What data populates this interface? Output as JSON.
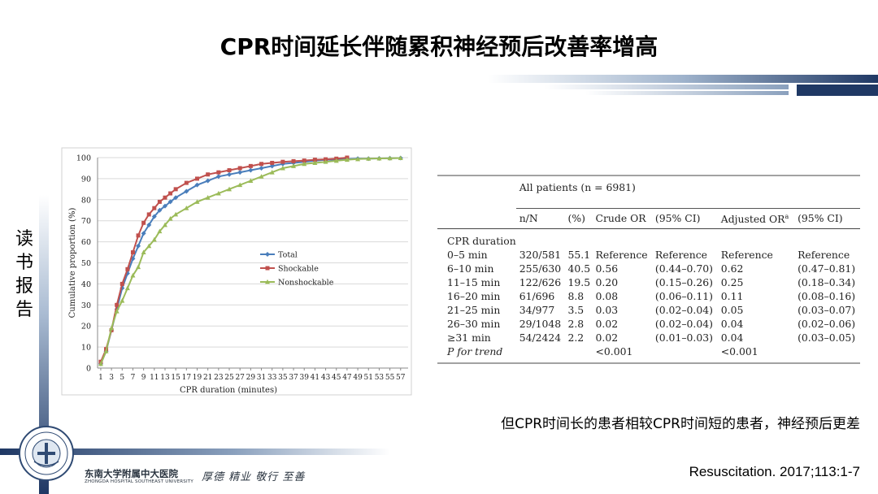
{
  "title": "CPR时间延长伴随累积神经预后改善率增高",
  "side_label": [
    "读",
    "书",
    "报",
    "告"
  ],
  "caption": "但CPR时间长的患者相较CPR时间短的患者，神经预后更差",
  "citation": "Resuscitation. 2017;113:1-7",
  "hospital": {
    "name_cn": "东南大学附属中大医院",
    "name_en": "ZHONGDA HOSPITAL SOUTHEAST UNIVERSITY",
    "motto": "厚德  精业  敬行  至善"
  },
  "colors": {
    "total": "#4a7ebb",
    "shockable": "#c0504d",
    "nonshockable": "#9bbb59",
    "accent": "#1f3864"
  },
  "chart_data": {
    "type": "line",
    "xlabel": "CPR duration (minutes)",
    "ylabel": "Cumulative proportion (%)",
    "xlim": [
      1,
      58
    ],
    "ylim": [
      0,
      100
    ],
    "yticks": [
      0,
      10,
      20,
      30,
      40,
      50,
      60,
      70,
      80,
      90,
      100
    ],
    "xticks": [
      1,
      3,
      5,
      7,
      9,
      11,
      13,
      15,
      17,
      19,
      21,
      23,
      25,
      27,
      29,
      31,
      33,
      35,
      37,
      39,
      41,
      43,
      45,
      47,
      49,
      51,
      53,
      55,
      57
    ],
    "legend_position": "center",
    "series": [
      {
        "name": "Total",
        "color": "#4a7ebb",
        "x": [
          1,
          2,
          3,
          4,
          5,
          6,
          7,
          8,
          9,
          10,
          11,
          12,
          13,
          14,
          15,
          17,
          19,
          21,
          23,
          25,
          27,
          29,
          31,
          33,
          35,
          37,
          39,
          41,
          43,
          45,
          47,
          49,
          51,
          53,
          55,
          57
        ],
        "y": [
          2,
          8,
          18,
          28,
          38,
          45,
          52,
          58,
          64,
          68,
          72,
          75,
          77,
          79,
          81,
          84,
          87,
          89,
          91,
          92,
          93,
          94,
          95,
          96,
          97,
          97.5,
          98,
          98.5,
          99,
          99,
          99.3,
          99.5,
          99.5,
          99.6,
          99.7,
          99.8
        ]
      },
      {
        "name": "Shockable",
        "color": "#c0504d",
        "x": [
          1,
          2,
          3,
          4,
          5,
          6,
          7,
          8,
          9,
          10,
          11,
          12,
          13,
          14,
          15,
          17,
          19,
          21,
          23,
          25,
          27,
          29,
          31,
          33,
          35,
          37,
          39,
          41,
          43,
          45,
          47
        ],
        "y": [
          3,
          9,
          18,
          30,
          40,
          47,
          55,
          63,
          69,
          73,
          76,
          79,
          81,
          83,
          85,
          88,
          90,
          92,
          93,
          94,
          95,
          96,
          97,
          97.5,
          98,
          98.3,
          98.6,
          99,
          99.2,
          99.5,
          100
        ]
      },
      {
        "name": "Nonshockable",
        "color": "#9bbb59",
        "x": [
          1,
          2,
          3,
          4,
          5,
          6,
          7,
          8,
          9,
          10,
          11,
          12,
          13,
          14,
          15,
          17,
          19,
          21,
          23,
          25,
          27,
          29,
          31,
          33,
          35,
          37,
          39,
          41,
          43,
          45,
          47,
          49,
          51,
          53,
          55,
          57
        ],
        "y": [
          2,
          8,
          19,
          27,
          32,
          38,
          44,
          48,
          55,
          58,
          61,
          65,
          68,
          71,
          73,
          76,
          79,
          81,
          83,
          85,
          87,
          89,
          91,
          93,
          95,
          96,
          97,
          97.5,
          98,
          98.5,
          99,
          99.3,
          99.5,
          99.6,
          99.7,
          99.8
        ]
      }
    ]
  },
  "table": {
    "group_header": "All patients (n = 6981)",
    "columns": [
      "n/N",
      "(%)",
      "Crude OR",
      "(95% CI)",
      "Adjusted OR",
      "(95% CI)"
    ],
    "adjusted_sup": "a",
    "section_label": "CPR duration",
    "rows": [
      [
        "0–5 min",
        "320/581",
        "55.1",
        "Reference",
        "Reference",
        "Reference",
        "Reference"
      ],
      [
        "6–10 min",
        "255/630",
        "40.5",
        "0.56",
        "(0.44–0.70)",
        "0.62",
        "(0.47–0.81)"
      ],
      [
        "11–15 min",
        "122/626",
        "19.5",
        "0.20",
        "(0.15–0.26)",
        "0.25",
        "(0.18–0.34)"
      ],
      [
        "16–20 min",
        "61/696",
        "8.8",
        "0.08",
        "(0.06–0.11)",
        "0.11",
        "(0.08–0.16)"
      ],
      [
        "21–25 min",
        "34/977",
        "3.5",
        "0.03",
        "(0.02–0.04)",
        "0.05",
        "(0.03–0.07)"
      ],
      [
        "26–30 min",
        "29/1048",
        "2.8",
        "0.02",
        "(0.02–0.04)",
        "0.04",
        "(0.02–0.06)"
      ],
      [
        "≥31 min",
        "54/2424",
        "2.2",
        "0.02",
        "(0.01–0.03)",
        "0.04",
        "(0.03–0.05)"
      ]
    ],
    "trend_label": "P for trend",
    "trend_crude": "<0.001",
    "trend_adjusted": "<0.001"
  }
}
